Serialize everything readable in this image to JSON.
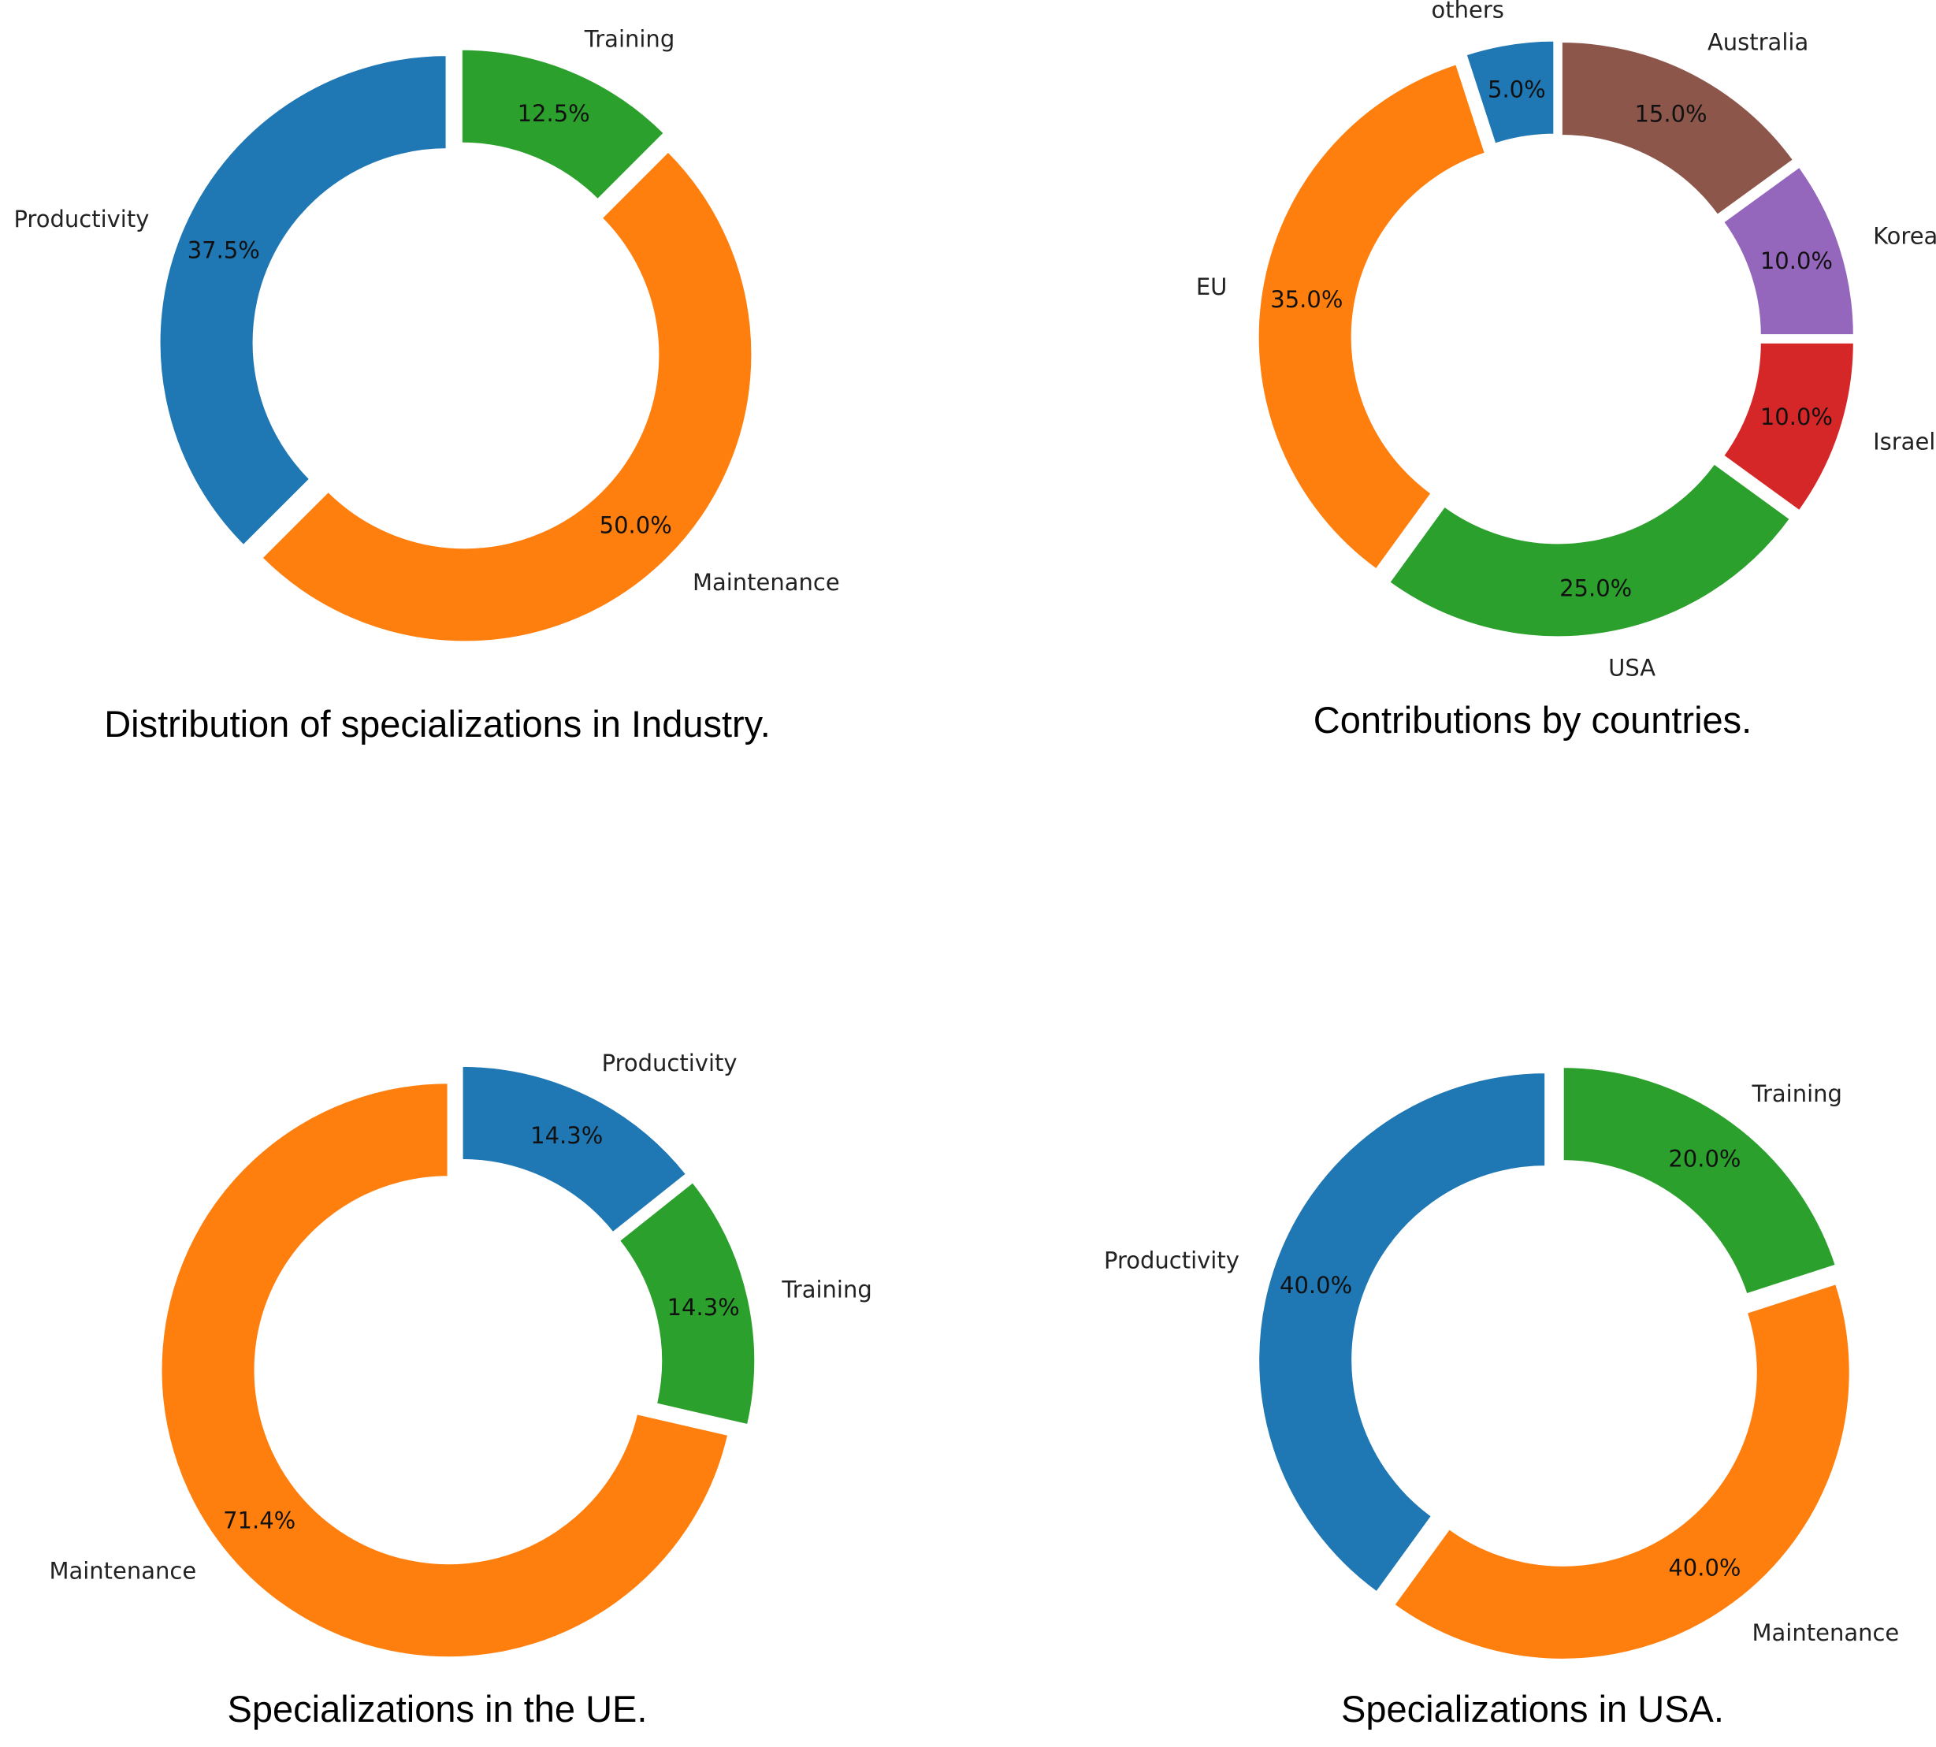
{
  "chart_data": [
    {
      "type": "pie",
      "title": "Distribution of specializations in Industry.",
      "categories": [
        "Training",
        "Maintenance",
        "Productivity"
      ],
      "values": [
        12.5,
        50.0,
        37.5
      ],
      "pct_labels": [
        "12.5%",
        "50.0%",
        "37.5%"
      ],
      "colors": [
        "#2ca02c",
        "#ff7f0e",
        "#1f77b4"
      ]
    },
    {
      "type": "pie",
      "title": "Contributions by countries.",
      "categories": [
        "Australia",
        "Korea",
        "Israel",
        "USA",
        "EU",
        "others"
      ],
      "values": [
        15.0,
        10.0,
        10.0,
        25.0,
        35.0,
        5.0
      ],
      "pct_labels": [
        "15.0%",
        "10.0%",
        "10.0%",
        "25.0%",
        "35.0%",
        "5.0%"
      ],
      "colors": [
        "#8c564b",
        "#9467bd",
        "#d62728",
        "#2ca02c",
        "#ff7f0e",
        "#1f77b4"
      ]
    },
    {
      "type": "pie",
      "title": "Specializations in the UE.",
      "categories": [
        "Productivity",
        "Training",
        "Maintenance"
      ],
      "values": [
        14.3,
        14.3,
        71.4
      ],
      "pct_labels": [
        "14.3%",
        "14.3%",
        "71.4%"
      ],
      "colors": [
        "#1f77b4",
        "#2ca02c",
        "#ff7f0e"
      ]
    },
    {
      "type": "pie",
      "title": "Specializations in USA.",
      "categories": [
        "Training",
        "Maintenance",
        "Productivity"
      ],
      "values": [
        20.0,
        40.0,
        40.0
      ],
      "pct_labels": [
        "20.0%",
        "40.0%",
        "40.0%"
      ],
      "colors": [
        "#2ca02c",
        "#ff7f0e",
        "#1f77b4"
      ]
    }
  ]
}
